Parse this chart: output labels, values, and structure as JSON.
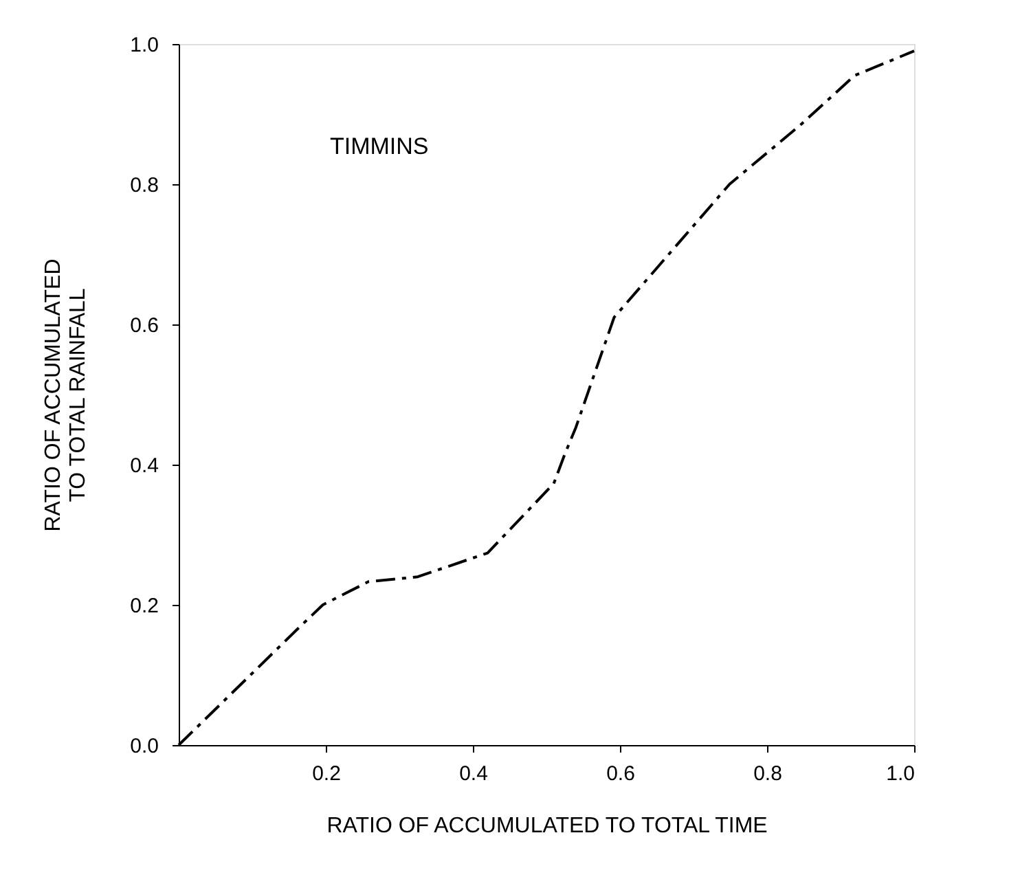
{
  "chart_data": {
    "type": "line",
    "xlabel": "RATIO OF ACCUMULATED TO TOTAL TIME",
    "ylabel": "RATIO OF ACCUMULATED\nTO TOTAL RAINFALL",
    "annotations": [
      "TIMMINS"
    ],
    "x": [
      0,
      0.165,
      0.196,
      0.258,
      0.325,
      0.42,
      0.51,
      0.525,
      0.54,
      0.592,
      0.749,
      0.847,
      0.919,
      1.0
    ],
    "series": [
      {
        "color": "#000000",
        "values": [
          0,
          0.169,
          0.2,
          0.233,
          0.24,
          0.274,
          0.373,
          0.415,
          0.453,
          0.61,
          0.8,
          0.886,
          0.955,
          0.99
        ]
      }
    ],
    "xlim": [
      0,
      1.0
    ],
    "ylim": [
      0,
      1.0
    ],
    "xticks": [
      0.2,
      0.4,
      0.6,
      0.8,
      {
        "value": 1.0,
        "label": "1.0"
      }
    ],
    "yticks": [
      {
        "value": 0,
        "label": "0.0"
      },
      0.2,
      0.4,
      0.6,
      0.8,
      {
        "value": 1.0,
        "label": "1.0"
      }
    ],
    "grid": false,
    "legend": false,
    "marker": "none",
    "line_style": "dashed"
  }
}
